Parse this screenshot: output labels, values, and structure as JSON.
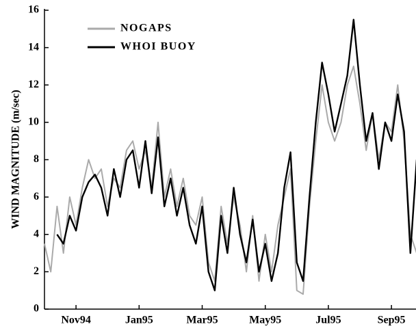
{
  "chart_data": {
    "type": "line",
    "ylabel": "WIND MAGNITUDE (m/sec)",
    "x": [
      -1.0,
      -0.8,
      -0.6,
      -0.4,
      -0.2,
      0.0,
      0.2,
      0.4,
      0.6,
      0.8,
      1.0,
      1.2,
      1.4,
      1.6,
      1.8,
      2.0,
      2.2,
      2.4,
      2.6,
      2.8,
      3.0,
      3.2,
      3.4,
      3.6,
      3.8,
      4.0,
      4.2,
      4.4,
      4.6,
      4.8,
      5.0,
      5.2,
      5.4,
      5.6,
      5.8,
      6.0,
      6.2,
      6.4,
      6.6,
      6.8,
      7.0,
      7.2,
      7.4,
      7.6,
      7.8,
      8.0,
      8.2,
      8.4,
      8.6,
      8.8,
      9.0,
      9.2,
      9.4,
      9.6,
      9.8,
      10.0,
      10.2,
      10.4,
      10.6,
      10.8
    ],
    "series": [
      {
        "name": "NOGAPS",
        "color": "#aaaaaa",
        "values": [
          3.5,
          2.0,
          5.5,
          3.0,
          6.0,
          4.5,
          6.5,
          8.0,
          7.0,
          7.5,
          5.5,
          7.0,
          6.5,
          8.5,
          9.0,
          7.5,
          8.5,
          6.5,
          10.0,
          6.0,
          7.5,
          5.5,
          7.0,
          5.0,
          4.5,
          6.0,
          2.5,
          1.5,
          5.5,
          3.5,
          6.0,
          4.5,
          2.0,
          5.0,
          1.5,
          4.0,
          2.0,
          4.5,
          6.0,
          7.5,
          1.0,
          0.8,
          5.5,
          9.0,
          12.0,
          10.0,
          9.0,
          10.0,
          12.0,
          13.0,
          11.0,
          8.5,
          10.5,
          8.0,
          10.0,
          9.5,
          12.0,
          9.0,
          4.0,
          3.0
        ]
      },
      {
        "name": "WHOI BUOY",
        "color": "#000000",
        "values": [
          null,
          null,
          4.0,
          3.5,
          5.0,
          4.2,
          6.0,
          6.8,
          7.2,
          6.5,
          5.0,
          7.5,
          6.0,
          8.0,
          8.5,
          6.5,
          9.0,
          6.2,
          9.2,
          5.5,
          7.0,
          5.0,
          6.5,
          4.5,
          3.5,
          5.5,
          2.0,
          1.0,
          5.0,
          3.0,
          6.5,
          4.0,
          2.5,
          4.8,
          2.0,
          3.5,
          1.5,
          3.0,
          6.5,
          8.4,
          2.5,
          1.5,
          6.0,
          10.0,
          13.2,
          11.5,
          9.5,
          11.0,
          12.5,
          15.5,
          12.0,
          9.0,
          10.5,
          7.5,
          10.0,
          9.0,
          11.5,
          9.5,
          3.0,
          8.0
        ]
      }
    ],
    "xlim": [
      -1.0,
      10.8
    ],
    "xticks": [
      {
        "value": 0,
        "label": "Nov94"
      },
      {
        "value": 2,
        "label": "Jan95"
      },
      {
        "value": 4,
        "label": "Mar95"
      },
      {
        "value": 6,
        "label": "May95"
      },
      {
        "value": 8,
        "label": "Jul95"
      },
      {
        "value": 10,
        "label": "Sep95"
      }
    ],
    "ylim": [
      0,
      16
    ],
    "yticks": [
      0,
      2,
      4,
      6,
      8,
      10,
      12,
      14,
      16
    ],
    "legend": "upper left"
  }
}
